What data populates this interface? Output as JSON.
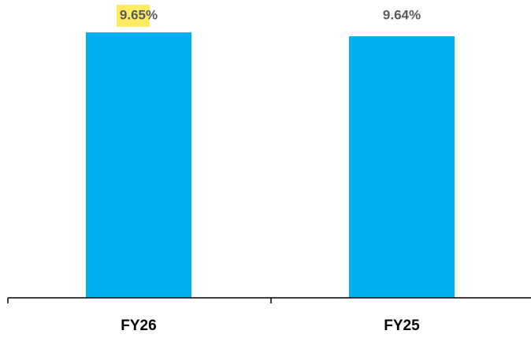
{
  "chart_data": {
    "type": "bar",
    "categories": [
      "FY26",
      "FY25"
    ],
    "values": [
      9.65,
      9.64
    ],
    "value_labels": [
      "9.65%",
      "9.64%"
    ],
    "color": "#00b0f0",
    "ylim": [
      8.98,
      9.66
    ]
  }
}
